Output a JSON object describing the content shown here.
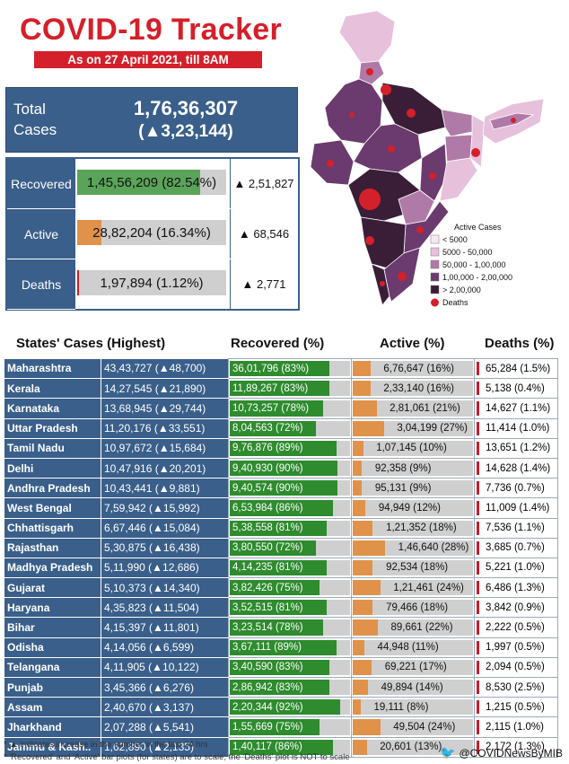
{
  "title": "COVID-19 Tracker",
  "as_of": "As on 27 April 2021, till 8AM",
  "total": {
    "label": "Total Cases",
    "value": "1,76,36,307",
    "increase": "(▲3,23,144)"
  },
  "summary": [
    {
      "label": "Recovered",
      "value": "1,45,56,209 (82.54%)",
      "increase": "▲ 2,51,827",
      "fraction": 0.8254,
      "color": "#5aa45a"
    },
    {
      "label": "Active",
      "value": "28,82,204 (16.34%)",
      "increase": "▲ 68,546",
      "fraction": 0.1634,
      "color": "#e0924a"
    },
    {
      "label": "Deaths",
      "value": "1,97,894 (1.12%)",
      "increase": "▲ 2,771",
      "fraction": 0.0112,
      "color": "#c81e2b"
    }
  ],
  "legend": {
    "title": "Active Cases",
    "items": [
      {
        "label": "< 5000",
        "color": "#f6e8f2"
      },
      {
        "label": "5000 - 50,000",
        "color": "#e7c0dc"
      },
      {
        "label": "50,000 - 1,00,000",
        "color": "#b07aa8"
      },
      {
        "label": "1,00,000 - 2,00,000",
        "color": "#6b3a6e"
      },
      {
        "label": "> 2,00,000",
        "color": "#3a1e38"
      }
    ],
    "deaths_label": "Deaths"
  },
  "table_headers": {
    "state": "States' Cases (Highest)",
    "recovered": "Recovered (%)",
    "active": "Active (%)",
    "deaths": "Deaths (%)"
  },
  "states": [
    {
      "name": "Maharashtra",
      "cases": "43,43,727 (▲48,700)",
      "recovered": "36,01,796 (83%)",
      "rec_pct": 83,
      "active": "6,76,647 (16%)",
      "act_pct": 16,
      "deaths": "65,284 (1.5%)",
      "dth_pct": 1.5
    },
    {
      "name": "Kerala",
      "cases": "14,27,545 (▲21,890)",
      "recovered": "11,89,267 (83%)",
      "rec_pct": 83,
      "active": "2,33,140 (16%)",
      "act_pct": 16,
      "deaths": "5,138 (0.4%)",
      "dth_pct": 0.4
    },
    {
      "name": "Karnataka",
      "cases": "13,68,945 (▲29,744)",
      "recovered": "10,73,257 (78%)",
      "rec_pct": 78,
      "active": "2,81,061 (21%)",
      "act_pct": 21,
      "deaths": "14,627 (1.1%)",
      "dth_pct": 1.1
    },
    {
      "name": "Uttar Pradesh",
      "cases": "11,20,176 (▲33,551)",
      "recovered": "8,04,563 (72%)",
      "rec_pct": 72,
      "active": "3,04,199 (27%)",
      "act_pct": 27,
      "deaths": "11,414 (1.0%)",
      "dth_pct": 1.0
    },
    {
      "name": "Tamil Nadu",
      "cases": "10,97,672 (▲15,684)",
      "recovered": "9,76,876 (89%)",
      "rec_pct": 89,
      "active": "1,07,145 (10%)",
      "act_pct": 10,
      "deaths": "13,651 (1.2%)",
      "dth_pct": 1.2
    },
    {
      "name": "Delhi",
      "cases": "10,47,916 (▲20,201)",
      "recovered": "9,40,930 (90%)",
      "rec_pct": 90,
      "active": "92,358 (9%)",
      "act_pct": 9,
      "deaths": "14,628 (1.4%)",
      "dth_pct": 1.4
    },
    {
      "name": "Andhra Pradesh",
      "cases": "10,43,441 (▲9,881)",
      "recovered": "9,40,574 (90%)",
      "rec_pct": 90,
      "active": "95,131 (9%)",
      "act_pct": 9,
      "deaths": "7,736 (0.7%)",
      "dth_pct": 0.7
    },
    {
      "name": "West Bengal",
      "cases": "7,59,942 (▲15,992)",
      "recovered": "6,53,984 (86%)",
      "rec_pct": 86,
      "active": "94,949 (12%)",
      "act_pct": 12,
      "deaths": "11,009 (1.4%)",
      "dth_pct": 1.4
    },
    {
      "name": "Chhattisgarh",
      "cases": "6,67,446 (▲15,084)",
      "recovered": "5,38,558 (81%)",
      "rec_pct": 81,
      "active": "1,21,352 (18%)",
      "act_pct": 18,
      "deaths": "7,536 (1.1%)",
      "dth_pct": 1.1
    },
    {
      "name": "Rajasthan",
      "cases": "5,30,875 (▲16,438)",
      "recovered": "3,80,550 (72%)",
      "rec_pct": 72,
      "active": "1,46,640 (28%)",
      "act_pct": 28,
      "deaths": "3,685 (0.7%)",
      "dth_pct": 0.7
    },
    {
      "name": "Madhya Pradesh",
      "cases": "5,11,990 (▲12,686)",
      "recovered": "4,14,235 (81%)",
      "rec_pct": 81,
      "active": "92,534 (18%)",
      "act_pct": 18,
      "deaths": "5,221 (1.0%)",
      "dth_pct": 1.0
    },
    {
      "name": "Gujarat",
      "cases": "5,10,373 (▲14,340)",
      "recovered": "3,82,426 (75%)",
      "rec_pct": 75,
      "active": "1,21,461 (24%)",
      "act_pct": 24,
      "deaths": "6,486 (1.3%)",
      "dth_pct": 1.3
    },
    {
      "name": "Haryana",
      "cases": "4,35,823 (▲11,504)",
      "recovered": "3,52,515 (81%)",
      "rec_pct": 81,
      "active": "79,466 (18%)",
      "act_pct": 18,
      "deaths": "3,842 (0.9%)",
      "dth_pct": 0.9
    },
    {
      "name": "Bihar",
      "cases": "4,15,397 (▲11,801)",
      "recovered": "3,23,514 (78%)",
      "rec_pct": 78,
      "active": "89,661 (22%)",
      "act_pct": 22,
      "deaths": "2,222 (0.5%)",
      "dth_pct": 0.5
    },
    {
      "name": "Odisha",
      "cases": "4,14,056 (▲6,599)",
      "recovered": "3,67,111 (89%)",
      "rec_pct": 89,
      "active": "44,948 (11%)",
      "act_pct": 11,
      "deaths": "1,997 (0.5%)",
      "dth_pct": 0.5
    },
    {
      "name": "Telangana",
      "cases": "4,11,905 (▲10,122)",
      "recovered": "3,40,590 (83%)",
      "rec_pct": 83,
      "active": "69,221 (17%)",
      "act_pct": 17,
      "deaths": "2,094 (0.5%)",
      "dth_pct": 0.5
    },
    {
      "name": "Punjab",
      "cases": "3,45,366 (▲6,276)",
      "recovered": "2,86,942 (83%)",
      "rec_pct": 83,
      "active": "49,894 (14%)",
      "act_pct": 14,
      "deaths": "8,530 (2.5%)",
      "dth_pct": 2.5
    },
    {
      "name": "Assam",
      "cases": "2,40,670 (▲3,137)",
      "recovered": "2,20,344 (92%)",
      "rec_pct": 92,
      "active": "19,111 (8%)",
      "act_pct": 8,
      "deaths": "1,215 (0.5%)",
      "dth_pct": 0.5
    },
    {
      "name": "Jharkhand",
      "cases": "2,07,288 (▲5,541)",
      "recovered": "1,55,669 (75%)",
      "rec_pct": 75,
      "active": "49,504 (24%)",
      "act_pct": 24,
      "deaths": "2,115 (1.0%)",
      "dth_pct": 1.0
    },
    {
      "name": "Jammu & Kash..",
      "cases": "1,62,890 (▲2,135)",
      "recovered": "1,40,117 (86%)",
      "rec_pct": 86,
      "active": "20,601 (13%)",
      "act_pct": 13,
      "deaths": "2,172 (1.3%)",
      "dth_pct": 1.3
    }
  ],
  "footnotes": [
    "* ▲ indicates increase in the number in the last 24 hrs",
    "* 'Recovered' and 'Active' bar plots (for states) are to scale; the 'Deaths' plot is NOT to scale"
  ],
  "twitter": "@COVIDNewsByMIB",
  "colors": {
    "recovered": "#2e8b2e",
    "active": "#e0924a",
    "deaths": "#c81e2b",
    "header_blue": "#3a5f8a",
    "title_red": "#d4202a"
  }
}
